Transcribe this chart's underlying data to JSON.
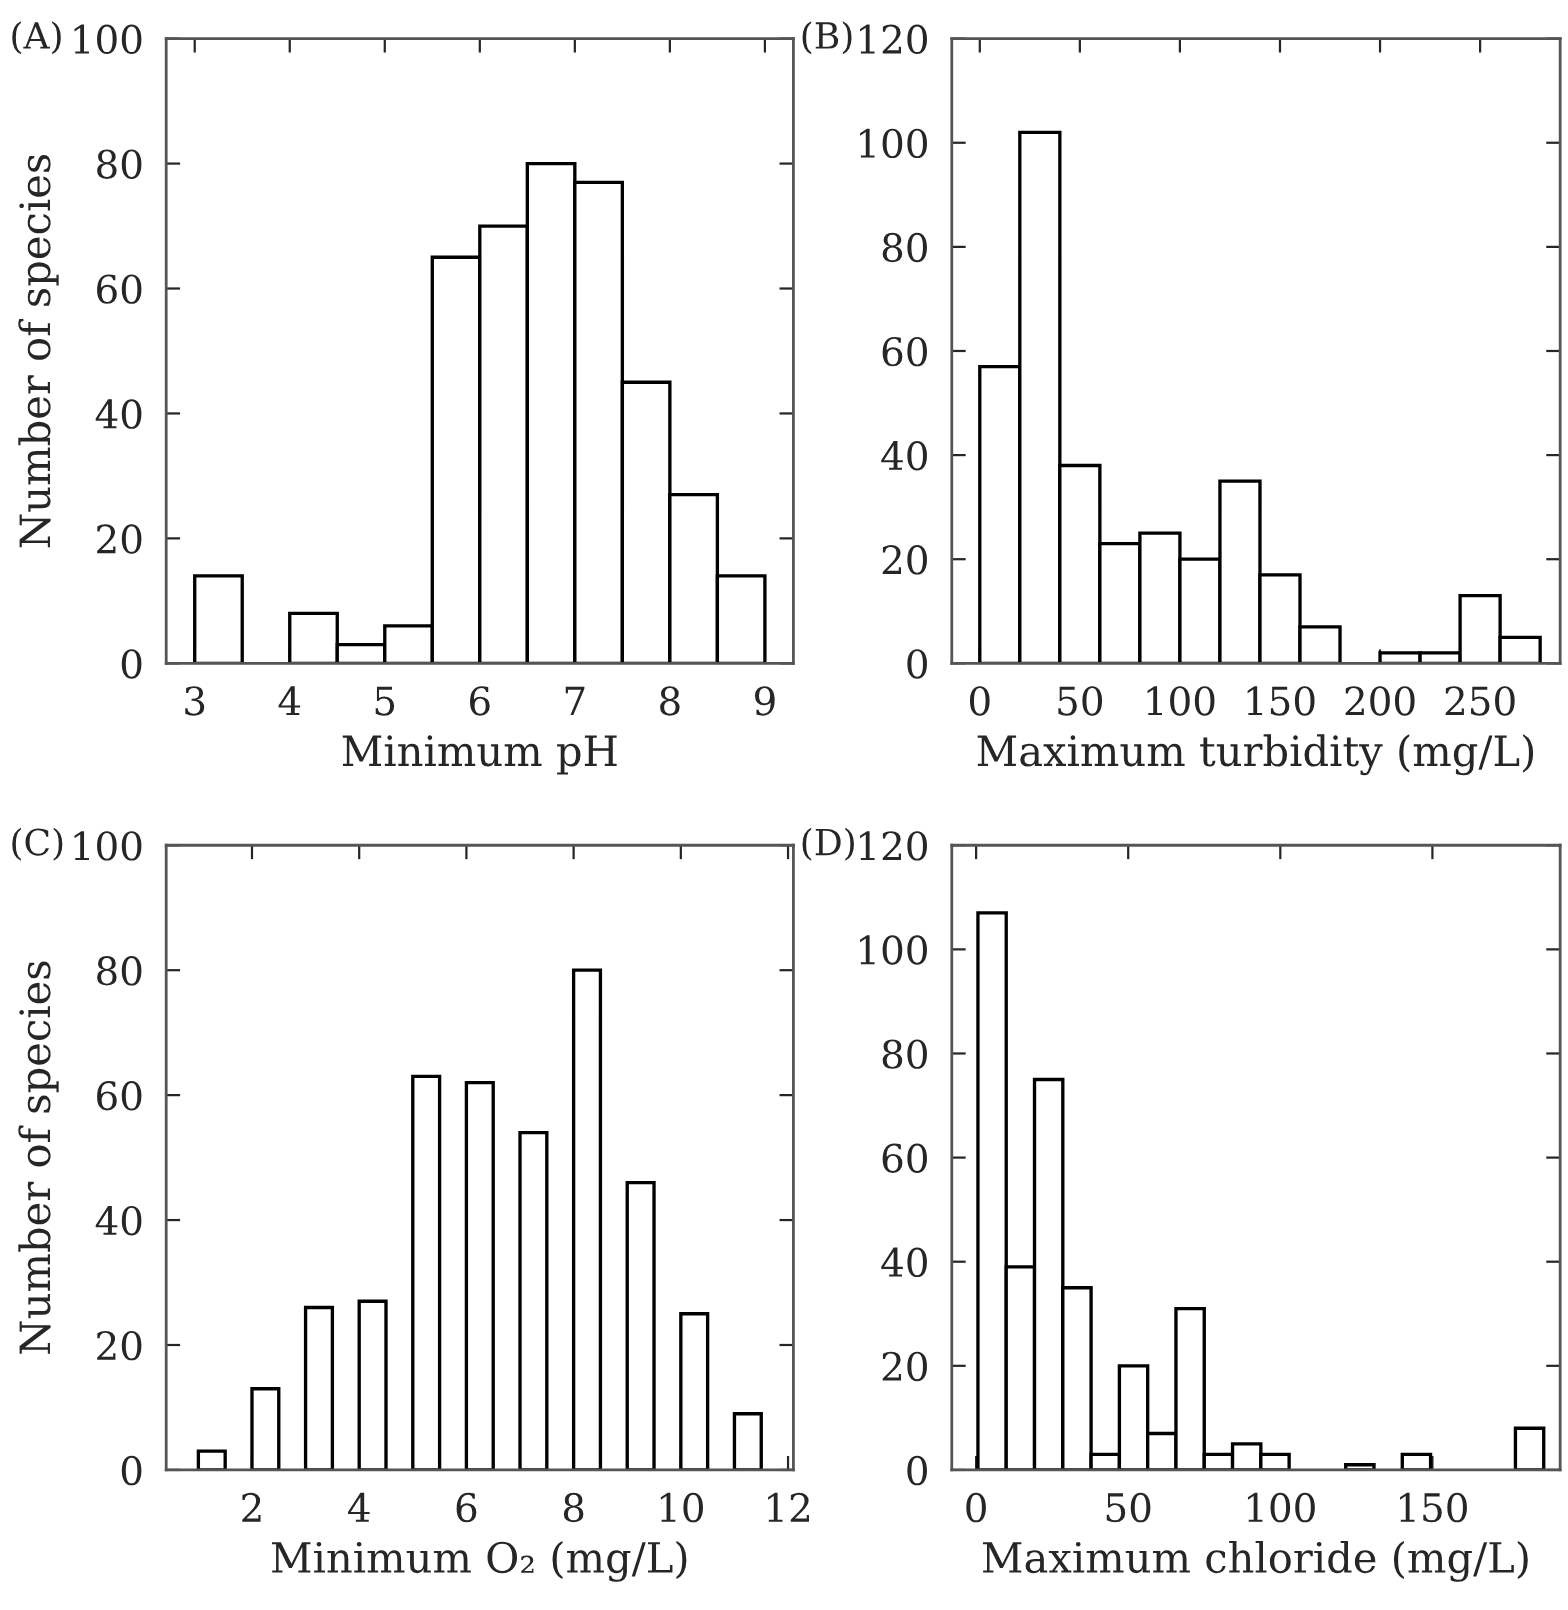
{
  "chart_data": [
    {
      "type": "histogram",
      "title": "(A)",
      "xlabel": "Minimum pH",
      "ylabel": "Number of species",
      "color": "#ffffff",
      "bins": [
        3,
        3.5,
        4,
        4.5,
        5,
        5.5,
        6,
        6.5,
        7,
        7.5,
        8,
        8.5,
        9
      ],
      "values": [
        14,
        0,
        8,
        3,
        6,
        65,
        70,
        80,
        77,
        45,
        27,
        14
      ],
      "xlim": [
        2.7,
        9.3
      ],
      "xticks": [
        3,
        4,
        5,
        6,
        7,
        8,
        9
      ],
      "ylim": [
        0,
        100
      ],
      "yticks": [
        0,
        20,
        40,
        60,
        80,
        100
      ],
      "grid": false,
      "legend": false
    },
    {
      "type": "histogram",
      "title": "(B)",
      "xlabel": "Maximum turbidity (mg/L)",
      "color": "#ffffff",
      "bins": [
        0,
        20,
        40,
        60,
        80,
        100,
        120,
        140,
        160,
        180,
        200,
        220,
        240,
        260,
        280
      ],
      "values": [
        57,
        102,
        38,
        23,
        25,
        20,
        35,
        17,
        7,
        0,
        2,
        2,
        13,
        5
      ],
      "xlim": [
        -14,
        290
      ],
      "xticks": [
        0,
        50,
        100,
        150,
        200,
        250
      ],
      "ylim": [
        0,
        120
      ],
      "yticks": [
        0,
        20,
        40,
        60,
        80,
        100,
        120
      ],
      "grid": false,
      "legend": false
    },
    {
      "type": "bar",
      "title": "(C)",
      "xlabel": "Minimum O₂ (mg/L)",
      "ylabel": "Number of species",
      "color": "#ffffff",
      "x": [
        1.25,
        2.25,
        3.25,
        4.25,
        5.25,
        6.25,
        7.25,
        8.25,
        9.25,
        10.25,
        11.25
      ],
      "values": [
        3,
        13,
        26,
        27,
        63,
        62,
        54,
        80,
        46,
        25,
        9
      ],
      "xlim": [
        0.4,
        12.1
      ],
      "xticks": [
        2,
        4,
        6,
        8,
        10,
        12
      ],
      "ylim": [
        0,
        100
      ],
      "yticks": [
        0,
        20,
        40,
        60,
        80,
        100
      ],
      "grid": false,
      "legend": false
    },
    {
      "type": "histogram",
      "title": "(D)",
      "xlabel": "Maximum chloride (mg/L)",
      "color": "#ffffff",
      "bins": [
        0.6,
        9.9,
        19.2,
        28.5,
        37.8,
        47.1,
        56.4,
        65.7,
        75.0,
        84.3,
        93.6,
        102.9,
        112.2,
        121.5,
        130.8,
        140.1,
        149.4,
        158.7,
        168.0,
        177.3,
        186.6
      ],
      "values": [
        107,
        39,
        75,
        35,
        3,
        20,
        7,
        31,
        3,
        5,
        3,
        0,
        0,
        1,
        0,
        3,
        0,
        0,
        0,
        8
      ],
      "xlim": [
        -8,
        192
      ],
      "xticks": [
        0,
        50,
        100,
        150
      ],
      "ylim": [
        0,
        120
      ],
      "yticks": [
        0,
        20,
        40,
        60,
        80,
        100,
        120
      ],
      "grid": false,
      "legend": false
    }
  ]
}
